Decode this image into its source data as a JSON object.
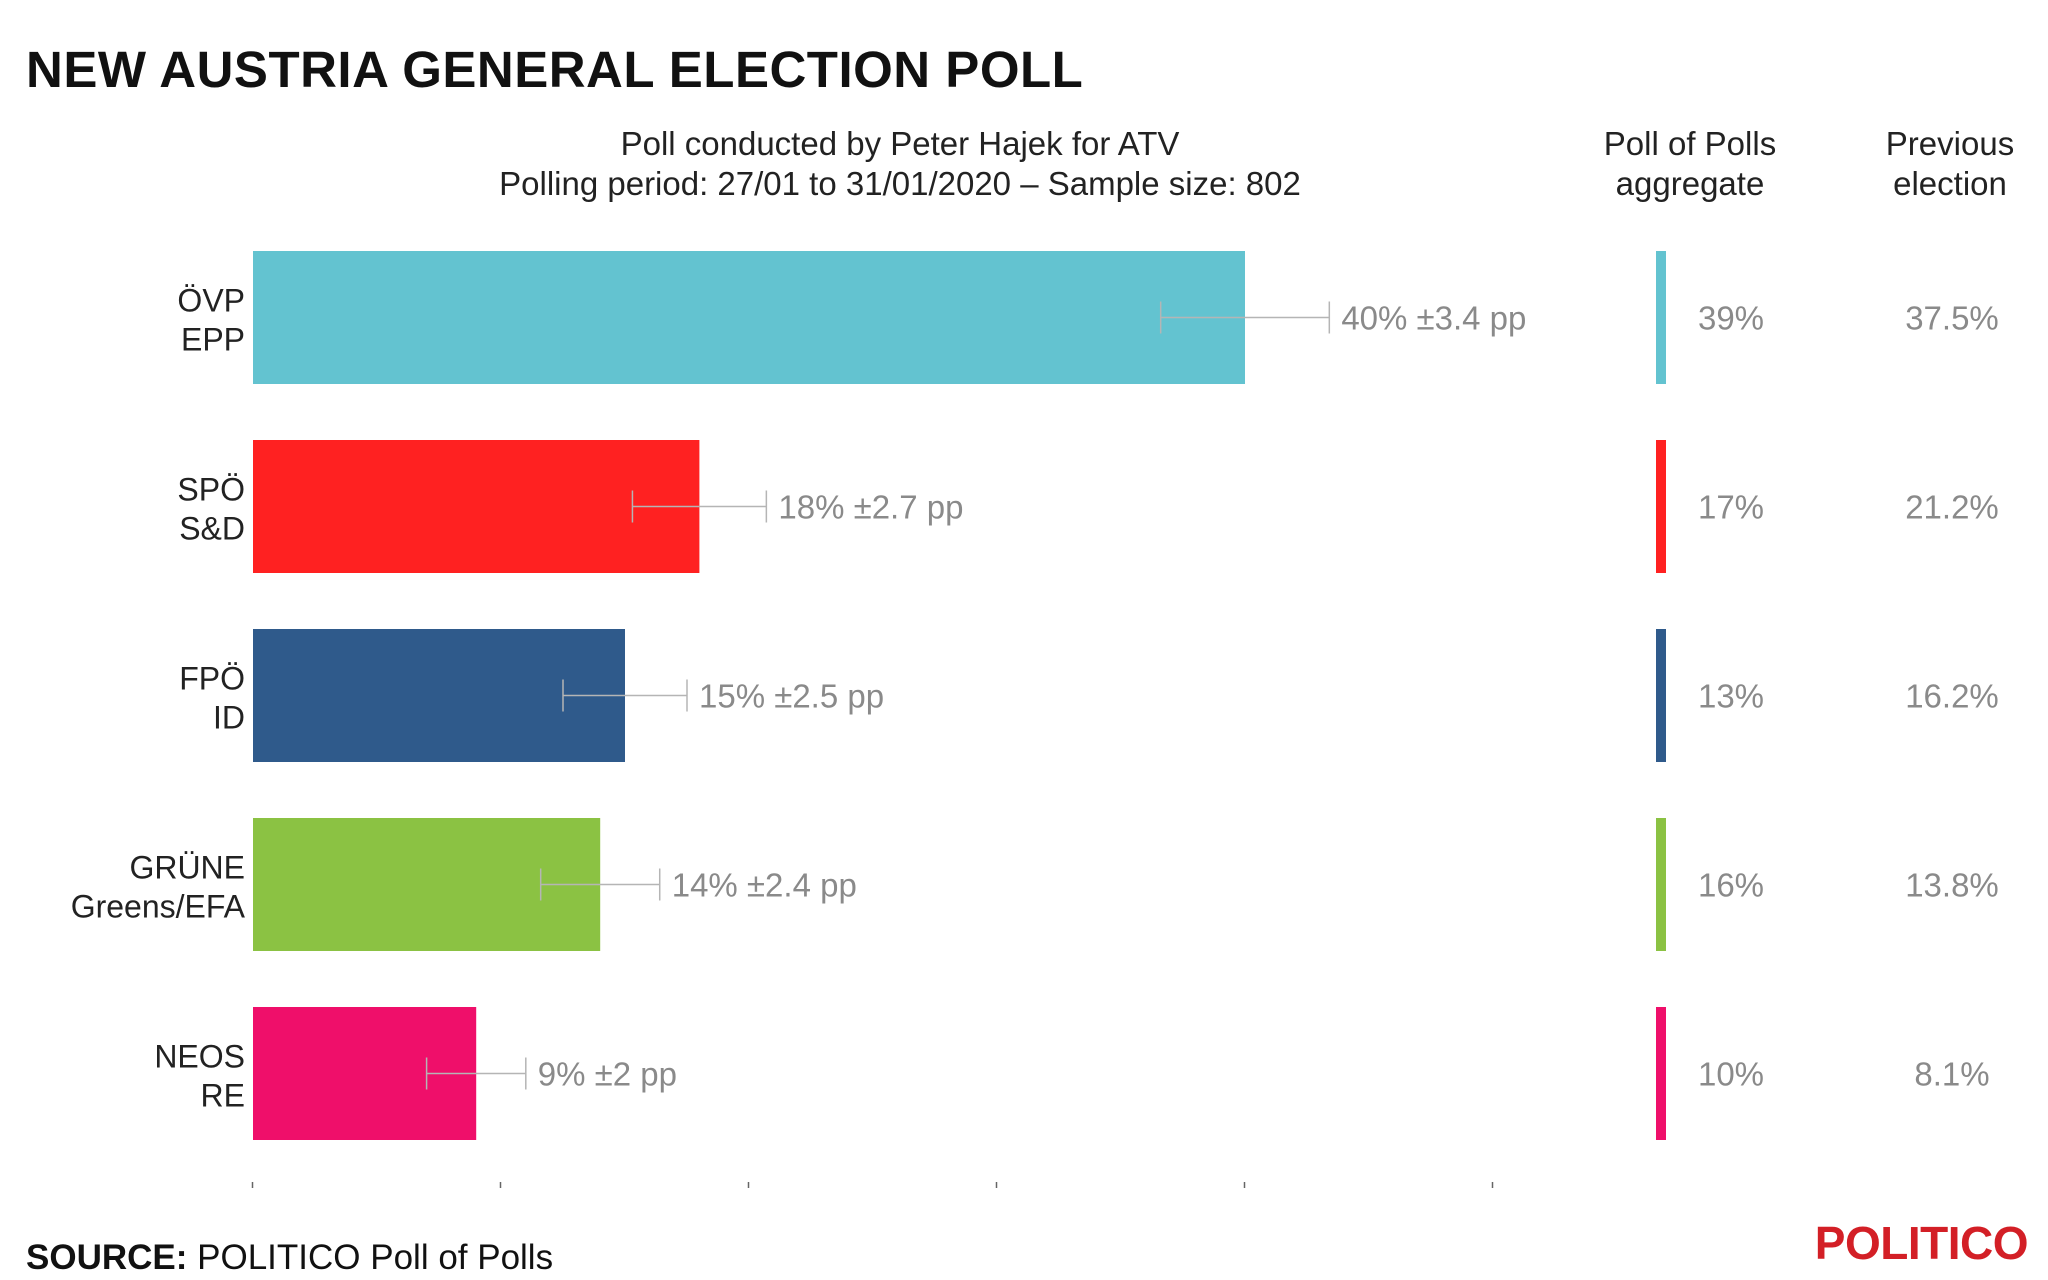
{
  "title": "NEW AUSTRIA GENERAL ELECTION POLL",
  "subtitle_line1": "Poll conducted by Peter Hajek for ATV",
  "subtitle_line2": "Polling period: 27/01 to 31/01/2020 – Sample size: 802",
  "column_headers": {
    "aggregate_line1": "Poll of Polls",
    "aggregate_line2": "aggregate",
    "previous_line1": "Previous",
    "previous_line2": "election"
  },
  "source_label": "SOURCE:",
  "source_text": "POLITICO Poll of Polls",
  "logo": "POLITICO",
  "chart_data": {
    "type": "bar",
    "orientation": "horizontal",
    "xlim": [
      0,
      50
    ],
    "grid": false,
    "categories": [
      "ÖVP EPP",
      "SPÖ S&D",
      "FPÖ ID",
      "GRÜNE Greens/EFA",
      "NEOS RE"
    ],
    "parties": [
      {
        "party": "ÖVP",
        "group": "EPP",
        "value": 40,
        "margin": 3.4,
        "label": "40% ±3.4 pp",
        "aggregate": "39%",
        "previous": "37.5%",
        "color": "#63c3d0"
      },
      {
        "party": "SPÖ",
        "group": "S&D",
        "value": 18,
        "margin": 2.7,
        "label": "18% ±2.7 pp",
        "aggregate": "17%",
        "previous": "21.2%",
        "color": "#ff2121"
      },
      {
        "party": "FPÖ",
        "group": "ID",
        "value": 15,
        "margin": 2.5,
        "label": "15% ±2.5 pp",
        "aggregate": "13%",
        "previous": "16.2%",
        "color": "#2f5a8b"
      },
      {
        "party": "GRÜNE",
        "group": "Greens/EFA",
        "value": 14,
        "margin": 2.4,
        "label": "14% ±2.4 pp",
        "aggregate": "16%",
        "previous": "13.8%",
        "color": "#8bc243"
      },
      {
        "party": "NEOS",
        "group": "RE",
        "value": 9,
        "margin": 2,
        "label": "9% ±2 pp",
        "aggregate": "10%",
        "previous": "8.1%",
        "color": "#ef0f6a"
      }
    ]
  }
}
